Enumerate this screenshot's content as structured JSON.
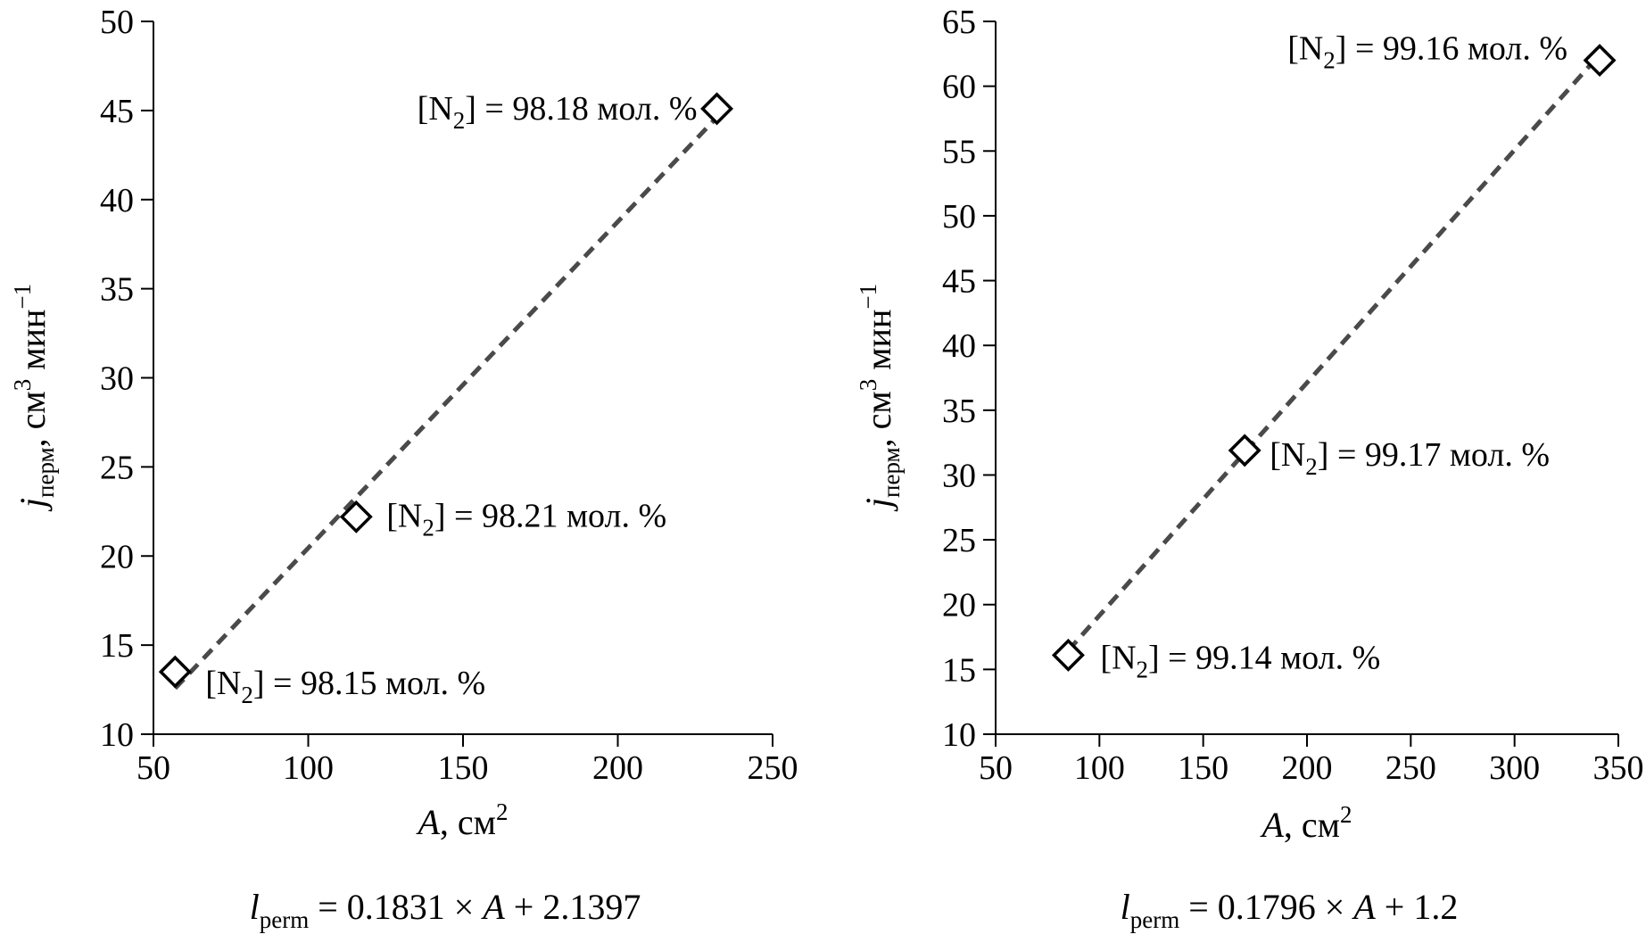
{
  "chart_data": [
    {
      "type": "scatter",
      "xlabel": {
        "var": "A",
        "rest": ", см",
        "sup": "2"
      },
      "ylabel": {
        "var": "j",
        "sub": "перм",
        "rest1": ", см",
        "sup1": "3",
        "rest2": " мин",
        "sup2": "−1"
      },
      "xlim": [
        50,
        250
      ],
      "ylim": [
        10,
        50
      ],
      "xticks": [
        50,
        100,
        150,
        200,
        250
      ],
      "yticks": [
        10,
        15,
        20,
        25,
        30,
        35,
        40,
        45,
        50
      ],
      "grid": false,
      "series": [
        {
          "marker": "open-diamond",
          "points": [
            {
              "x": 57,
              "y": 13.5
            },
            {
              "x": 115.5,
              "y": 22.2
            },
            {
              "x": 232,
              "y": 45.1
            }
          ]
        }
      ],
      "trendline": {
        "style": "dashed",
        "color": "#4a4a4a",
        "slope": 0.1831,
        "intercept": 2.1397,
        "x_range": [
          57,
          232
        ]
      },
      "annotations": [
        {
          "point": 0,
          "side": "right",
          "pre": "[N",
          "sub": "2",
          "post": "] = 98.15 мол. %"
        },
        {
          "point": 1,
          "side": "right",
          "pre": "[N",
          "sub": "2",
          "post": "] = 98.21 мол. %"
        },
        {
          "point": 2,
          "side": "left",
          "pre": "[N",
          "sub": "2",
          "post": "] = 98.18 мол. %"
        }
      ],
      "equation": {
        "var": "l",
        "sub": "perm",
        "rest": " = 0.1831 × ",
        "var2": "A",
        "rest2": " + 2.1397"
      }
    },
    {
      "type": "scatter",
      "xlabel": {
        "var": "A",
        "rest": ", см",
        "sup": "2"
      },
      "ylabel": {
        "var": "j",
        "sub": "перм",
        "rest1": ", см",
        "sup1": "3",
        "rest2": " мин",
        "sup2": "−1"
      },
      "xlim": [
        50,
        350
      ],
      "ylim": [
        10,
        65
      ],
      "xticks": [
        50,
        100,
        150,
        200,
        250,
        300,
        350
      ],
      "yticks": [
        10,
        15,
        20,
        25,
        30,
        35,
        40,
        45,
        50,
        55,
        60,
        65
      ],
      "grid": false,
      "series": [
        {
          "marker": "open-diamond",
          "points": [
            {
              "x": 85,
              "y": 16.1
            },
            {
              "x": 170,
              "y": 31.9
            },
            {
              "x": 341,
              "y": 62
            }
          ]
        }
      ],
      "trendline": {
        "style": "dashed",
        "color": "#4a4a4a",
        "slope": 0.1796,
        "intercept": 1.2,
        "x_range": [
          85,
          341
        ]
      },
      "annotations": [
        {
          "point": 0,
          "side": "right",
          "pre": "[N",
          "sub": "2",
          "post": "] = 99.14 мол. %"
        },
        {
          "point": 1,
          "side": "right",
          "pre": "[N",
          "sub": "2",
          "post": "] = 99.17 мол. %"
        },
        {
          "point": 2,
          "side": "left",
          "pre": "[N",
          "sub": "2",
          "post": "] = 99.16 мол. %"
        }
      ],
      "equation": {
        "var": "l",
        "sub": "perm",
        "rest": " = 0.1796 × ",
        "var2": "A",
        "rest2": " + 1.2"
      }
    }
  ]
}
